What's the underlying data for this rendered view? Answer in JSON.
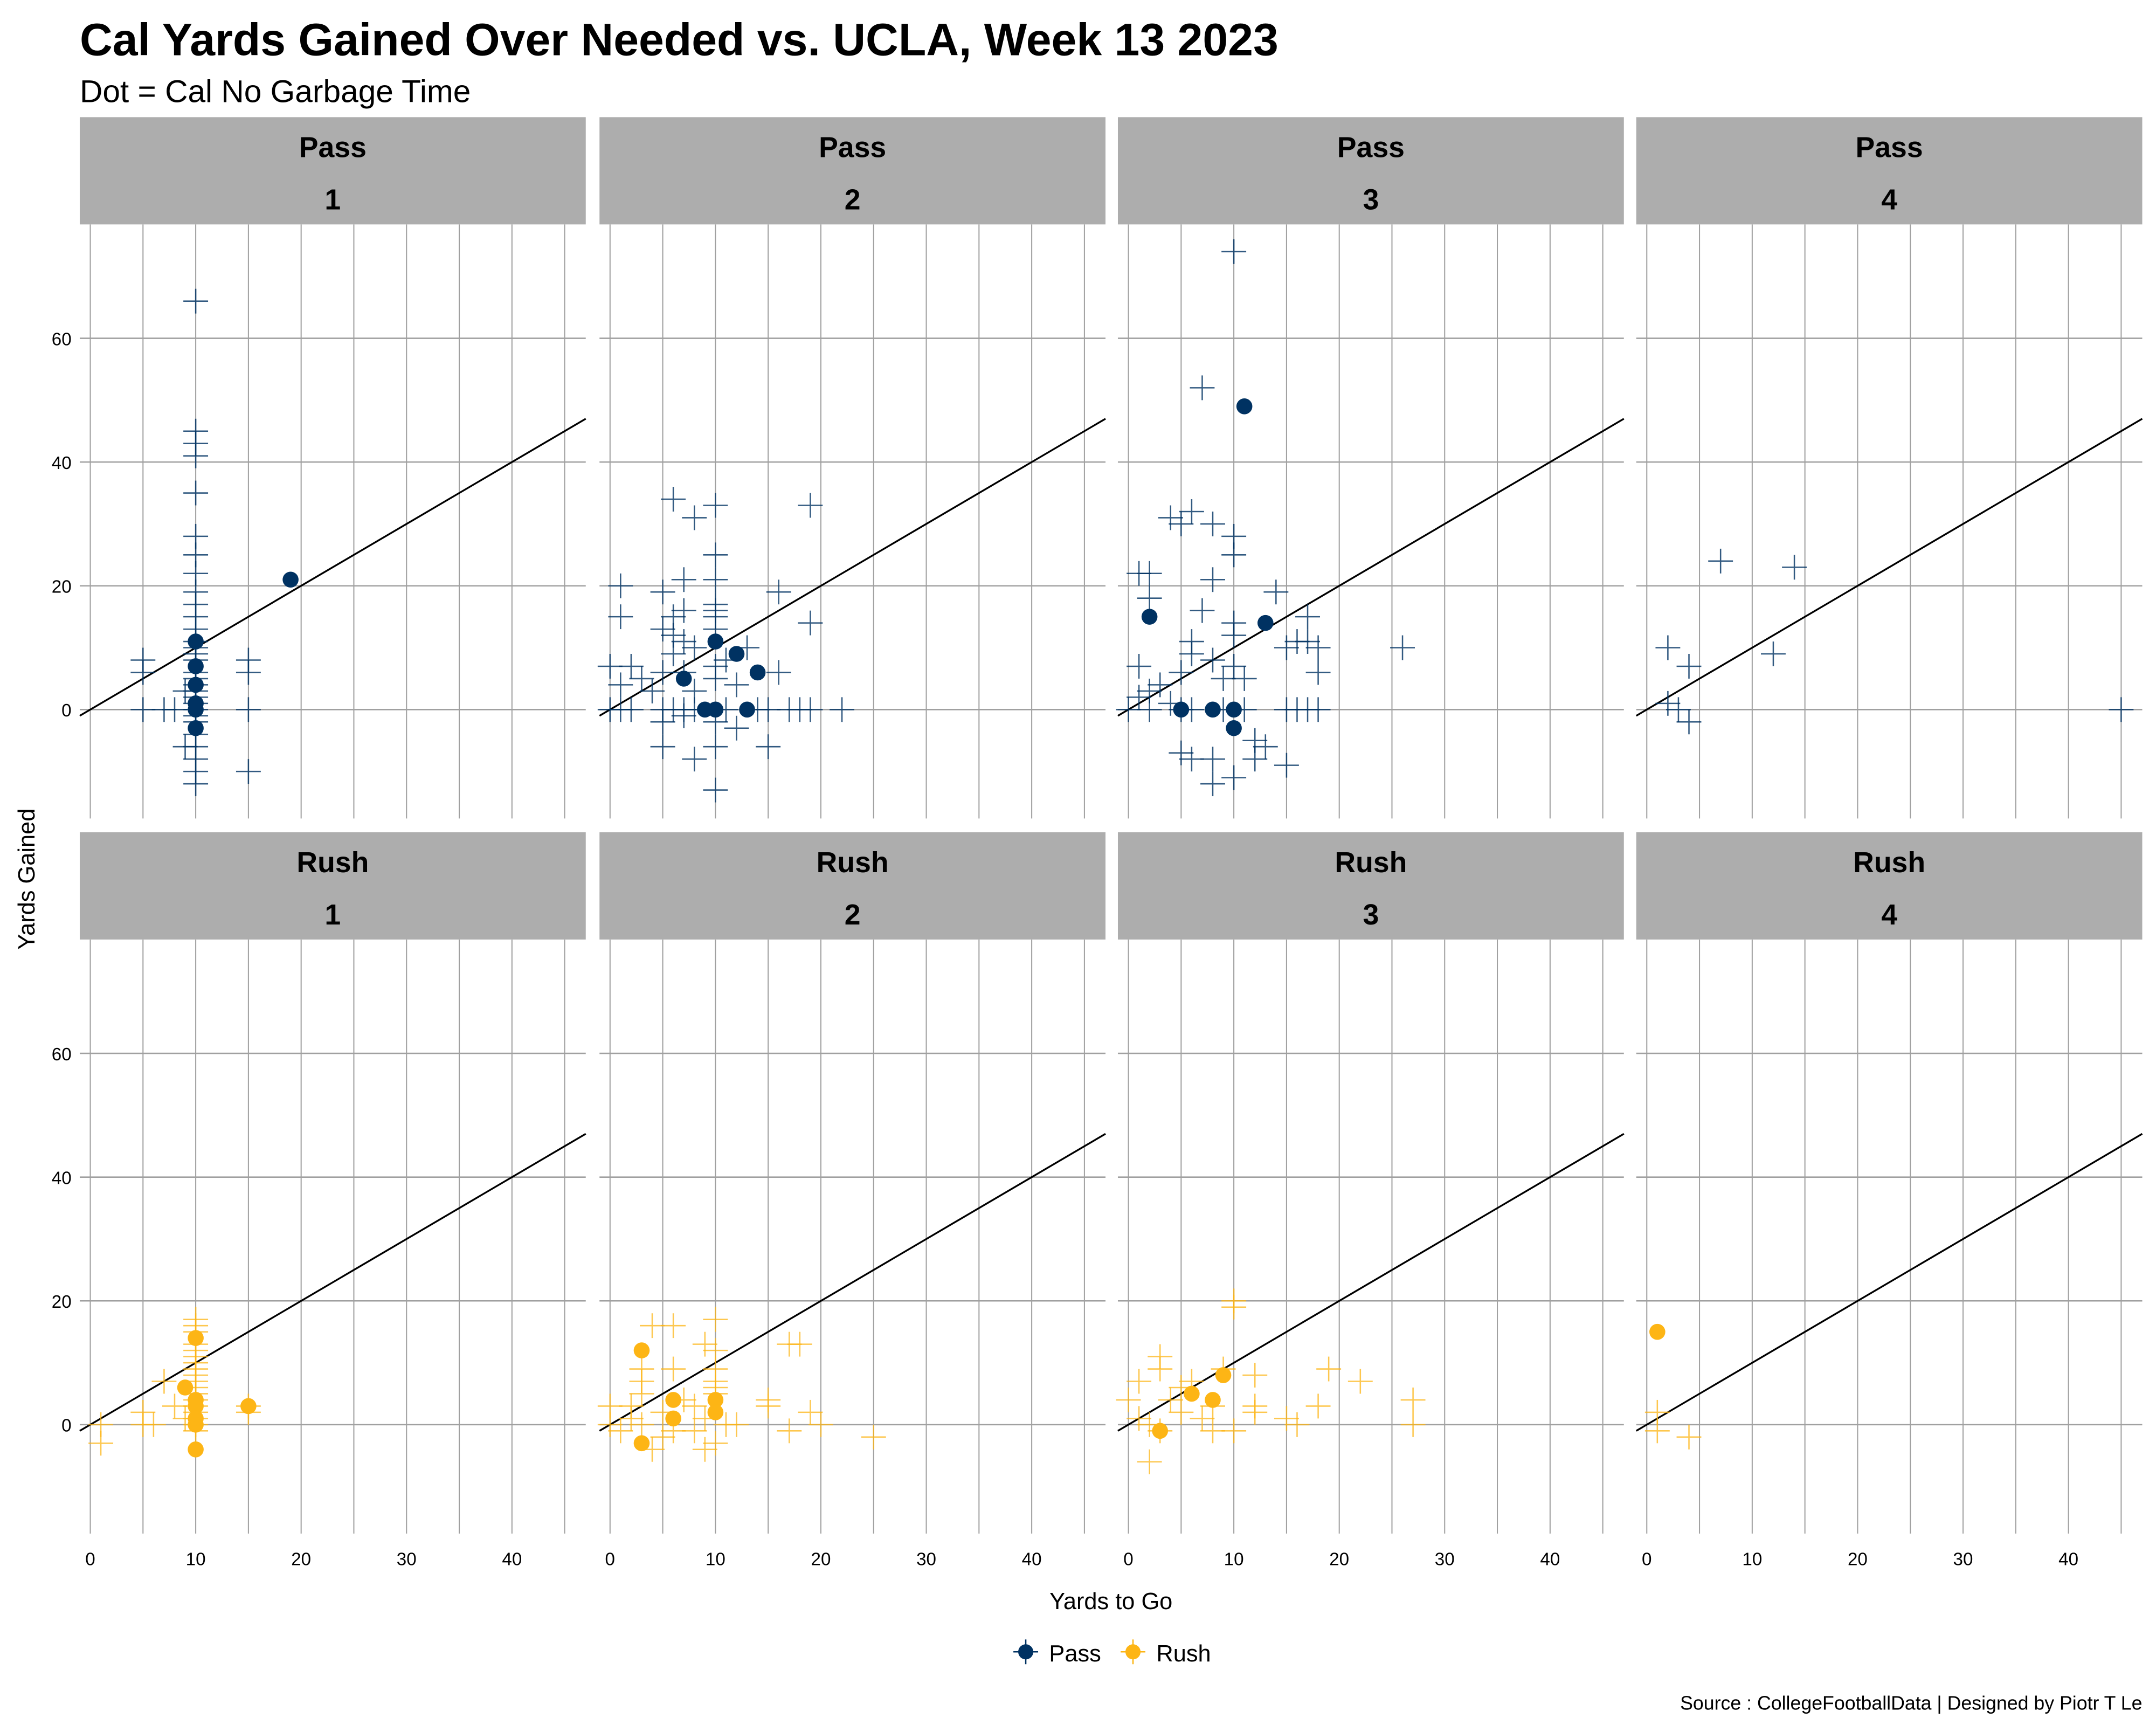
{
  "chart_data": {
    "type": "scatter",
    "title": "Cal Yards Gained Over Needed vs. UCLA, Week 13 2023",
    "subtitle": "Dot = Cal No Garbage Time",
    "xlabel": "Yards to Go",
    "ylabel": "Yards Gained",
    "caption": "Source : CollegeFootballData | Designed by Piotr T Le",
    "xlim": [
      -1,
      47
    ],
    "ylim": [
      -17.6,
      78.4
    ],
    "x_ticks": [
      0,
      10,
      20,
      30,
      40
    ],
    "y_ticks": [
      0,
      20,
      40,
      60
    ],
    "reference_line": "y = x",
    "grid": true,
    "legend": {
      "placement": "bottom",
      "entries": [
        {
          "name": "Pass",
          "color": "#003262"
        },
        {
          "name": "Rush",
          "color": "#FDB515"
        }
      ]
    },
    "facets": [
      {
        "type": "Pass",
        "down": "1",
        "crosses": [
          [
            10,
            66
          ],
          [
            10,
            45
          ],
          [
            10,
            43
          ],
          [
            10,
            41
          ],
          [
            10,
            35
          ],
          [
            10,
            28
          ],
          [
            10,
            25
          ],
          [
            10,
            22
          ],
          [
            10,
            19
          ],
          [
            10,
            17
          ],
          [
            10,
            15
          ],
          [
            10,
            13
          ],
          [
            10,
            11
          ],
          [
            10,
            10
          ],
          [
            10,
            9
          ],
          [
            10,
            8
          ],
          [
            10,
            6
          ],
          [
            10,
            5
          ],
          [
            10,
            4
          ],
          [
            10,
            3
          ],
          [
            10,
            2
          ],
          [
            10,
            1
          ],
          [
            10,
            0
          ],
          [
            10,
            -1
          ],
          [
            10,
            -2
          ],
          [
            10,
            -4
          ],
          [
            10,
            -6
          ],
          [
            10,
            -8
          ],
          [
            10,
            -10
          ],
          [
            10,
            -12
          ],
          [
            5,
            8
          ],
          [
            5,
            6
          ],
          [
            5,
            0
          ],
          [
            15,
            8
          ],
          [
            15,
            6
          ],
          [
            15,
            0
          ],
          [
            15,
            -10
          ],
          [
            9,
            -6
          ],
          [
            8,
            0
          ],
          [
            7,
            0
          ],
          [
            9,
            3
          ]
        ],
        "dots": [
          [
            19,
            21
          ],
          [
            10,
            11
          ],
          [
            10,
            7
          ],
          [
            10,
            4
          ],
          [
            10,
            1
          ],
          [
            10,
            0
          ],
          [
            10,
            -3
          ]
        ]
      },
      {
        "type": "Pass",
        "down": "2",
        "crosses": [
          [
            6,
            34
          ],
          [
            10,
            33
          ],
          [
            8,
            31
          ],
          [
            19,
            33
          ],
          [
            10,
            25
          ],
          [
            10,
            21
          ],
          [
            7,
            21
          ],
          [
            5,
            19
          ],
          [
            16,
            19
          ],
          [
            1,
            20
          ],
          [
            1,
            15
          ],
          [
            6,
            15
          ],
          [
            10,
            17
          ],
          [
            10,
            16
          ],
          [
            10,
            15
          ],
          [
            7,
            16
          ],
          [
            19,
            14
          ],
          [
            5,
            13
          ],
          [
            6,
            12
          ],
          [
            10,
            13
          ],
          [
            7,
            11
          ],
          [
            8,
            10
          ],
          [
            13,
            10
          ],
          [
            6,
            9
          ],
          [
            11,
            8
          ],
          [
            10,
            7
          ],
          [
            0,
            7
          ],
          [
            2,
            7
          ],
          [
            5,
            6
          ],
          [
            7,
            6
          ],
          [
            16,
            6
          ],
          [
            1,
            4
          ],
          [
            3,
            5
          ],
          [
            10,
            5
          ],
          [
            12,
            4
          ],
          [
            4,
            3
          ],
          [
            8,
            3
          ],
          [
            0,
            0
          ],
          [
            1,
            0
          ],
          [
            2,
            0
          ],
          [
            5,
            0
          ],
          [
            6,
            0
          ],
          [
            7,
            0
          ],
          [
            8,
            0
          ],
          [
            11,
            0
          ],
          [
            14,
            0
          ],
          [
            15,
            0
          ],
          [
            17,
            0
          ],
          [
            18,
            0
          ],
          [
            19,
            0
          ],
          [
            22,
            0
          ],
          [
            5,
            -2
          ],
          [
            7,
            -1
          ],
          [
            10,
            -2
          ],
          [
            12,
            -3
          ],
          [
            5,
            -6
          ],
          [
            10,
            -6
          ],
          [
            15,
            -6
          ],
          [
            8,
            -8
          ],
          [
            10,
            -13
          ]
        ],
        "dots": [
          [
            10,
            11
          ],
          [
            12,
            9
          ],
          [
            14,
            6
          ],
          [
            7,
            5
          ],
          [
            9,
            0
          ],
          [
            10,
            0
          ],
          [
            13,
            0
          ]
        ]
      },
      {
        "type": "Pass",
        "down": "3",
        "crosses": [
          [
            10,
            74
          ],
          [
            7,
            52
          ],
          [
            6,
            32
          ],
          [
            4,
            31
          ],
          [
            5,
            30
          ],
          [
            8,
            30
          ],
          [
            10,
            28
          ],
          [
            10,
            25
          ],
          [
            1,
            22
          ],
          [
            2,
            22
          ],
          [
            8,
            21
          ],
          [
            14,
            19
          ],
          [
            2,
            18
          ],
          [
            7,
            16
          ],
          [
            17,
            15
          ],
          [
            10,
            14
          ],
          [
            10,
            12
          ],
          [
            6,
            11
          ],
          [
            16,
            11
          ],
          [
            17,
            11
          ],
          [
            15,
            10
          ],
          [
            18,
            10
          ],
          [
            26,
            10
          ],
          [
            6,
            9
          ],
          [
            8,
            8
          ],
          [
            1,
            7
          ],
          [
            10,
            7
          ],
          [
            5,
            6
          ],
          [
            9,
            5
          ],
          [
            18,
            6
          ],
          [
            11,
            5
          ],
          [
            3,
            4
          ],
          [
            2,
            3
          ],
          [
            1,
            2
          ],
          [
            4,
            1
          ],
          [
            5,
            0
          ],
          [
            0,
            0
          ],
          [
            2,
            0
          ],
          [
            6,
            0
          ],
          [
            9,
            0
          ],
          [
            11,
            0
          ],
          [
            15,
            0
          ],
          [
            16,
            0
          ],
          [
            17,
            0
          ],
          [
            18,
            0
          ],
          [
            5,
            -7
          ],
          [
            6,
            -8
          ],
          [
            8,
            -8
          ],
          [
            12,
            -5
          ],
          [
            13,
            -6
          ],
          [
            12,
            -8
          ],
          [
            15,
            -9
          ],
          [
            10,
            -11
          ],
          [
            8,
            -12
          ]
        ],
        "dots": [
          [
            11,
            49
          ],
          [
            2,
            15
          ],
          [
            13,
            14
          ],
          [
            5,
            0
          ],
          [
            8,
            0
          ],
          [
            10,
            0
          ],
          [
            10,
            -3
          ]
        ]
      },
      {
        "type": "Pass",
        "down": "4",
        "crosses": [
          [
            2,
            10
          ],
          [
            4,
            7
          ],
          [
            7,
            24
          ],
          [
            14,
            23
          ],
          [
            12,
            9
          ],
          [
            2,
            1
          ],
          [
            3,
            0
          ],
          [
            4,
            -2
          ],
          [
            45,
            0
          ]
        ],
        "dots": []
      },
      {
        "type": "Rush",
        "down": "1",
        "crosses": [
          [
            10,
            17
          ],
          [
            10,
            16
          ],
          [
            10,
            15
          ],
          [
            10,
            13
          ],
          [
            10,
            12
          ],
          [
            10,
            11
          ],
          [
            10,
            10
          ],
          [
            10,
            9
          ],
          [
            10,
            8
          ],
          [
            10,
            7
          ],
          [
            10,
            6
          ],
          [
            10,
            5
          ],
          [
            10,
            4
          ],
          [
            10,
            3
          ],
          [
            10,
            2
          ],
          [
            10,
            1
          ],
          [
            10,
            0
          ],
          [
            10,
            -1
          ],
          [
            1,
            0
          ],
          [
            1,
            -3
          ],
          [
            5,
            2
          ],
          [
            5,
            0
          ],
          [
            7,
            7
          ],
          [
            6,
            0
          ],
          [
            8,
            3
          ],
          [
            9,
            1
          ],
          [
            15,
            2
          ],
          [
            15,
            3
          ]
        ],
        "dots": [
          [
            10,
            14
          ],
          [
            9,
            6
          ],
          [
            10,
            4
          ],
          [
            10,
            3
          ],
          [
            10,
            1
          ],
          [
            10,
            0
          ],
          [
            10,
            -4
          ],
          [
            15,
            3
          ]
        ]
      },
      {
        "type": "Rush",
        "down": "2",
        "crosses": [
          [
            4,
            16
          ],
          [
            6,
            16
          ],
          [
            3,
            9
          ],
          [
            3,
            7
          ],
          [
            3,
            5
          ],
          [
            6,
            9
          ],
          [
            9,
            13
          ],
          [
            10,
            17
          ],
          [
            10,
            12
          ],
          [
            10,
            9
          ],
          [
            10,
            7
          ],
          [
            10,
            6
          ],
          [
            10,
            5
          ],
          [
            8,
            3
          ],
          [
            7,
            4
          ],
          [
            0,
            3
          ],
          [
            0,
            0
          ],
          [
            1,
            -1
          ],
          [
            2,
            1
          ],
          [
            3,
            0
          ],
          [
            4,
            -4
          ],
          [
            5,
            -2
          ],
          [
            6,
            -1
          ],
          [
            9,
            -4
          ],
          [
            10,
            -3
          ],
          [
            11,
            0
          ],
          [
            12,
            0
          ],
          [
            15,
            4
          ],
          [
            15,
            3
          ],
          [
            17,
            13
          ],
          [
            18,
            13
          ],
          [
            19,
            2
          ],
          [
            17,
            -1
          ],
          [
            20,
            0
          ],
          [
            25,
            -2
          ],
          [
            2,
            3
          ],
          [
            5,
            2
          ],
          [
            9,
            1
          ],
          [
            8,
            -1
          ]
        ],
        "dots": [
          [
            3,
            12
          ],
          [
            6,
            4
          ],
          [
            6,
            1
          ],
          [
            10,
            4
          ],
          [
            10,
            2
          ],
          [
            3,
            -3
          ]
        ]
      },
      {
        "type": "Rush",
        "down": "3",
        "crosses": [
          [
            10,
            20
          ],
          [
            10,
            19
          ],
          [
            9,
            9
          ],
          [
            3,
            11
          ],
          [
            3,
            9
          ],
          [
            1,
            7
          ],
          [
            0,
            4
          ],
          [
            1,
            1
          ],
          [
            2,
            0
          ],
          [
            5,
            6
          ],
          [
            6,
            7
          ],
          [
            8,
            3
          ],
          [
            7,
            1
          ],
          [
            12,
            8
          ],
          [
            12,
            2
          ],
          [
            12,
            3
          ],
          [
            15,
            1
          ],
          [
            16,
            0
          ],
          [
            18,
            3
          ],
          [
            19,
            9
          ],
          [
            22,
            7
          ],
          [
            27,
            4
          ],
          [
            27,
            0
          ],
          [
            2,
            -6
          ],
          [
            3,
            -1
          ],
          [
            5,
            2
          ],
          [
            8,
            -1
          ],
          [
            10,
            -1
          ],
          [
            4,
            4
          ]
        ],
        "dots": [
          [
            9,
            8
          ],
          [
            6,
            5
          ],
          [
            8,
            4
          ],
          [
            3,
            -1
          ]
        ]
      },
      {
        "type": "Rush",
        "down": "4",
        "crosses": [
          [
            1,
            2
          ],
          [
            1,
            -1
          ],
          [
            4,
            -2
          ]
        ],
        "dots": [
          [
            1,
            15
          ]
        ]
      }
    ]
  }
}
